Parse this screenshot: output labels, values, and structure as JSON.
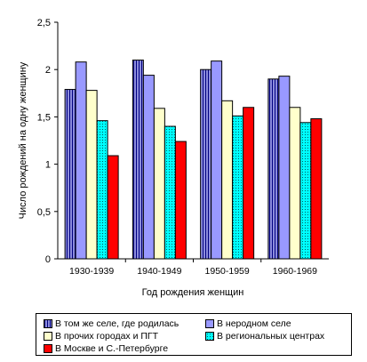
{
  "chart_data": {
    "type": "bar",
    "title": "",
    "xlabel": "Год рождения женщин",
    "ylabel": "Число рождений на одну женщину",
    "ylim": [
      0,
      2.5
    ],
    "yticks": [
      "0",
      "0,5",
      "1",
      "1,5",
      "2",
      "2,5"
    ],
    "grid": false,
    "legend_position": "bottom",
    "categories": [
      "1930-1939",
      "1940-1949",
      "1950-1959",
      "1960-1969"
    ],
    "series": [
      {
        "name": "В том же селе, где родилась",
        "values": [
          1.79,
          2.1,
          2.0,
          1.9
        ],
        "color": "#8c8cdc",
        "pattern": "vertical-lines"
      },
      {
        "name": "В неродном  селе",
        "values": [
          2.08,
          1.94,
          2.09,
          1.93
        ],
        "color": "#9999ff",
        "pattern": "solid"
      },
      {
        "name": "В прочих городах и ПГТ",
        "values": [
          1.78,
          1.59,
          1.67,
          1.6
        ],
        "color": "#ffffcc",
        "pattern": "solid"
      },
      {
        "name": "В региональных центрах",
        "values": [
          1.46,
          1.4,
          1.51,
          1.44
        ],
        "color": "#00ffff",
        "pattern": "dots"
      },
      {
        "name": "В Москве и С.-Петербурге",
        "values": [
          1.09,
          1.24,
          1.6,
          1.48
        ],
        "color": "#ff0000",
        "pattern": "solid"
      }
    ]
  }
}
